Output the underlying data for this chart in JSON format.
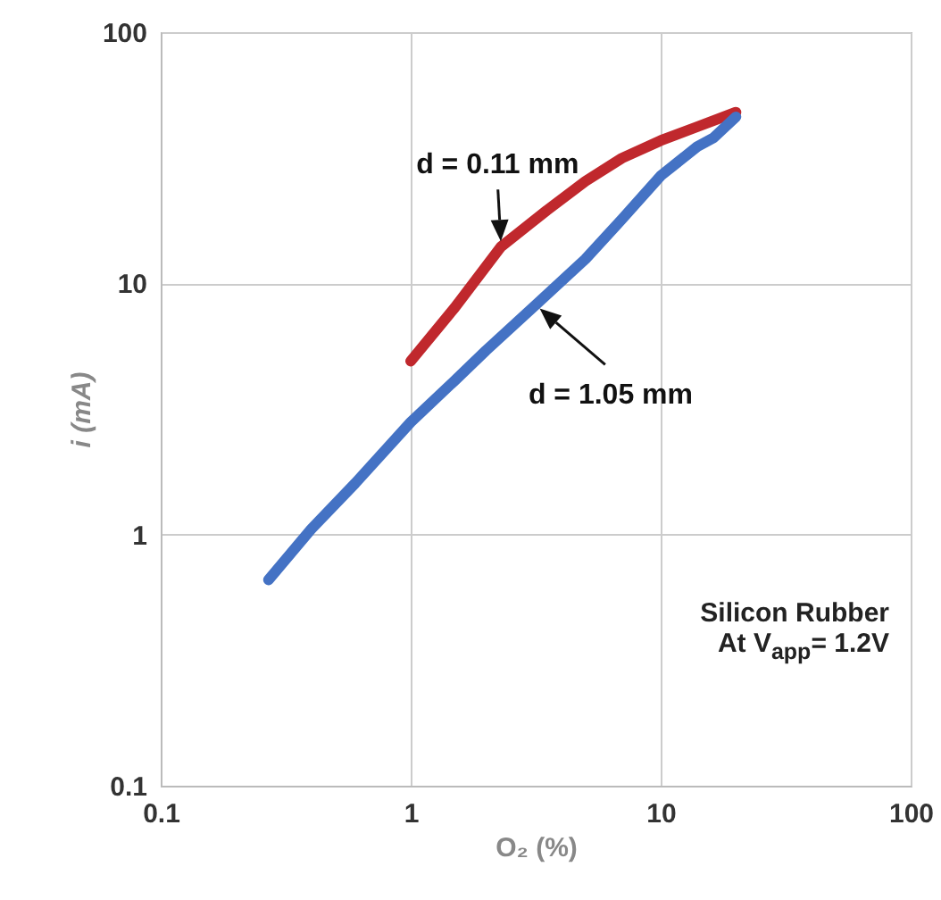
{
  "chart_data": {
    "type": "line",
    "xlabel": "O₂ (%)",
    "ylabel": "i  (mA)",
    "log": "xy",
    "grid": true,
    "xlim": [
      0.1,
      100
    ],
    "xticks": [
      0.1,
      1,
      10,
      100
    ],
    "ylim": [
      0.1,
      100
    ],
    "yticks": [
      0.1,
      1,
      10,
      100
    ],
    "series": [
      {
        "color": "#c0282d",
        "x": [
          1,
          1.5,
          2.3,
          3.5,
          5,
          7,
          10,
          14,
          20
        ],
        "values": [
          4.9,
          8,
          14,
          19.5,
          25.5,
          31.5,
          37,
          42,
          48
        ]
      },
      {
        "color": "#4472c4",
        "x": [
          0.27,
          0.4,
          0.6,
          1,
          1.5,
          2,
          3.16,
          5,
          7,
          10,
          14,
          16.3,
          20
        ],
        "values": [
          0.66,
          1.05,
          1.6,
          2.8,
          4.1,
          5.4,
          8.2,
          12.5,
          18,
          26.8,
          35,
          38,
          46
        ]
      }
    ],
    "annotations": [
      {
        "text": "d = 0.11 mm",
        "x": 2.3,
        "y": 14
      },
      {
        "text": "d = 1.05 mm",
        "x": 3.16,
        "y": 8.2
      },
      "Silicon Rubber",
      "At V$_{app}$= 1.2V"
    ]
  }
}
